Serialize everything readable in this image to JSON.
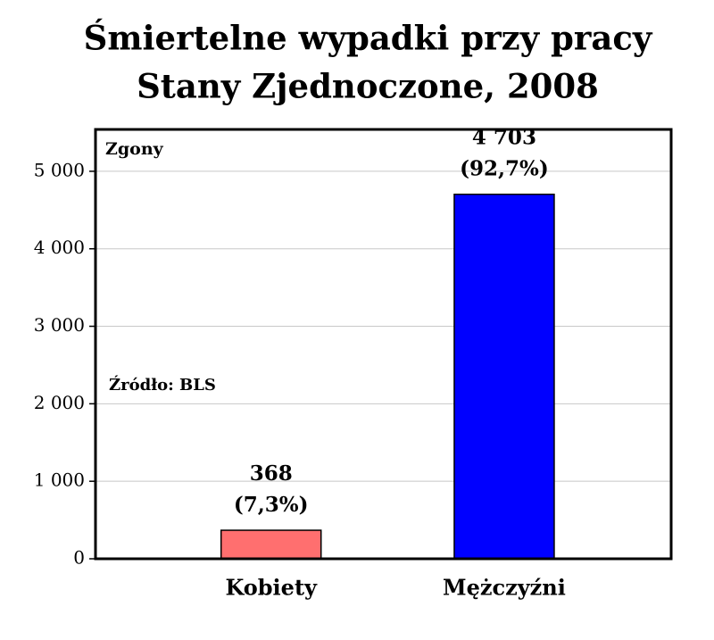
{
  "chart_data": {
    "type": "bar",
    "title": "Śmiertelne wypadki przy pracy",
    "subtitle": "Stany Zjednoczone, 2008",
    "y_label": "Zgony",
    "annotation": "Źródło: BLS",
    "categories": [
      "Kobiety",
      "Mężczyźni"
    ],
    "values": [
      368,
      4703
    ],
    "value_labels": [
      "368",
      "4 703"
    ],
    "share_labels": [
      "(7,3%)",
      "(92,7%)"
    ],
    "colors": [
      "#ff6f6f",
      "#0000ff"
    ],
    "ylim": [
      0,
      5540
    ],
    "yticks": [
      0,
      {
        "value": 1000,
        "label": "1 000"
      },
      {
        "value": 2000,
        "label": "2 000"
      },
      {
        "value": 3000,
        "label": "3 000"
      },
      {
        "value": 4000,
        "label": "4 000"
      },
      {
        "value": 5000,
        "label": "5 000"
      }
    ],
    "grid": true
  }
}
